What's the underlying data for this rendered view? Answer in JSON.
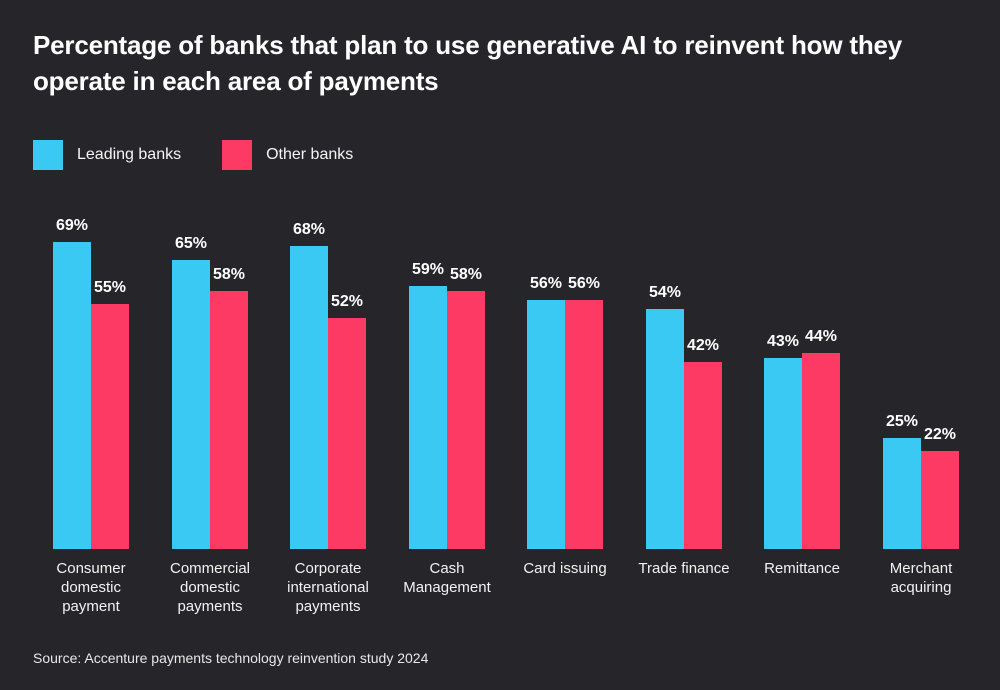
{
  "title": "Percentage of banks that plan to use generative AI to reinvent how they operate in each area of payments",
  "legend": {
    "items": [
      {
        "label": "Leading banks",
        "color": "#3AC9F2"
      },
      {
        "label": "Other banks",
        "color": "#FC3A64"
      }
    ]
  },
  "source": "Source: Accenture payments technology reinvention study 2024",
  "colors": {
    "background": "#262529",
    "title_text": "#FFFFFF",
    "leading_banks": "#3AC9F2",
    "other_banks": "#FC3A64"
  },
  "chart_data": {
    "type": "bar",
    "title": "Percentage of banks that plan to use generative AI to reinvent how they operate in each area of payments",
    "categories": [
      "Consumer domestic payment",
      "Commercial domestic payments",
      "Corporate international payments",
      "Cash Management",
      "Card issuing",
      "Trade finance",
      "Remittance",
      "Merchant acquiring"
    ],
    "series": [
      {
        "name": "Leading banks",
        "color": "#3AC9F2",
        "values": [
          69,
          65,
          68,
          59,
          56,
          54,
          43,
          25
        ]
      },
      {
        "name": "Other banks",
        "color": "#FC3A64",
        "values": [
          55,
          58,
          52,
          58,
          56,
          42,
          44,
          22
        ]
      }
    ],
    "value_suffix": "%",
    "xlabel": "",
    "ylabel": "",
    "ylim": [
      0,
      100
    ],
    "grid": false,
    "data_labels": true,
    "legend_position": "top-left"
  }
}
